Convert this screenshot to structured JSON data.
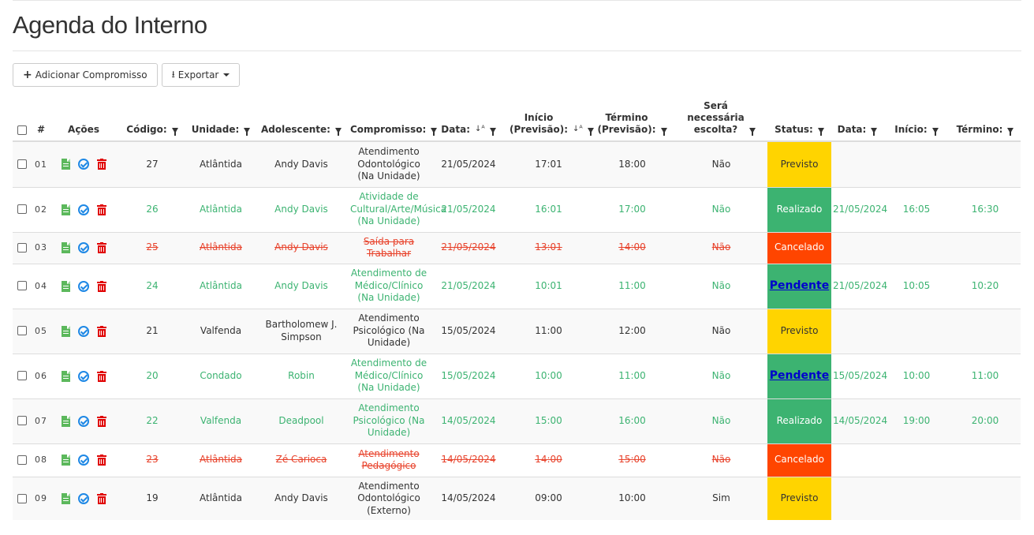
{
  "page": {
    "title": "Agenda do Interno"
  },
  "toolbar": {
    "add_label": "Adicionar Compromisso",
    "add_icon": "plus-icon",
    "export_label": "Exportar",
    "export_icon": "download-icon"
  },
  "table": {
    "headers": {
      "index": "#",
      "actions": "Ações",
      "code": "Código:",
      "unit": "Unidade:",
      "teen": "Adolescente:",
      "appointment": "Compromisso:",
      "date": "Data:",
      "start_l1": "Início",
      "start_l2": "(Previsão):",
      "end_l1": "Término",
      "end_l2": "(Previsão):",
      "escort_l1": "Será",
      "escort_l2": "necessária",
      "escort_l3": "escolta?",
      "status": "Status:",
      "real_date": "Data:",
      "real_start": "Início:",
      "real_end": "Término:"
    },
    "rows": [
      {
        "idx": "01",
        "code": "27",
        "unit": "Atlântida",
        "teen": "Andy Davis",
        "appt": "Atendimento Odontológico (Na Unidade)",
        "date": "21/05/2024",
        "start": "17:01",
        "end": "18:00",
        "escort": "Não",
        "status": "Previsto",
        "rdate": "",
        "rstart": "",
        "rend": ""
      },
      {
        "idx": "02",
        "code": "26",
        "unit": "Atlântida",
        "teen": "Andy Davis",
        "appt": "Atividade de Cultural/Arte/Música (Na Unidade)",
        "date": "21/05/2024",
        "start": "16:01",
        "end": "17:00",
        "escort": "Não",
        "status": "Realizado",
        "rdate": "21/05/2024",
        "rstart": "16:05",
        "rend": "16:30"
      },
      {
        "idx": "03",
        "code": "25",
        "unit": "Atlântida",
        "teen": "Andy Davis",
        "appt": "Saída para Trabalhar",
        "date": "21/05/2024",
        "start": "13:01",
        "end": "14:00",
        "escort": "Não",
        "status": "Cancelado",
        "rdate": "",
        "rstart": "",
        "rend": ""
      },
      {
        "idx": "04",
        "code": "24",
        "unit": "Atlântida",
        "teen": "Andy Davis",
        "appt": "Atendimento de Médico/Clínico (Na Unidade)",
        "date": "21/05/2024",
        "start": "10:01",
        "end": "11:00",
        "escort": "Não",
        "status": "Pendente",
        "rdate": "21/05/2024",
        "rstart": "10:05",
        "rend": "10:20"
      },
      {
        "idx": "05",
        "code": "21",
        "unit": "Valfenda",
        "teen": "Bartholomew J. Simpson",
        "appt": "Atendimento Psicológico (Na Unidade)",
        "date": "15/05/2024",
        "start": "11:00",
        "end": "12:00",
        "escort": "Não",
        "status": "Previsto",
        "rdate": "",
        "rstart": "",
        "rend": ""
      },
      {
        "idx": "06",
        "code": "20",
        "unit": "Condado",
        "teen": "Robin",
        "appt": "Atendimento de Médico/Clínico (Na Unidade)",
        "date": "15/05/2024",
        "start": "10:00",
        "end": "11:00",
        "escort": "Não",
        "status": "Pendente",
        "rdate": "15/05/2024",
        "rstart": "10:00",
        "rend": "11:00"
      },
      {
        "idx": "07",
        "code": "22",
        "unit": "Valfenda",
        "teen": "Deadpool",
        "appt": "Atendimento Psicológico (Na Unidade)",
        "date": "14/05/2024",
        "start": "15:00",
        "end": "16:00",
        "escort": "Não",
        "status": "Realizado",
        "rdate": "14/05/2024",
        "rstart": "19:00",
        "rend": "20:00"
      },
      {
        "idx": "08",
        "code": "23",
        "unit": "Atlântida",
        "teen": "Zé Carioca",
        "appt": "Atendimento Pedagógico",
        "date": "14/05/2024",
        "start": "14:00",
        "end": "15:00",
        "escort": "Não",
        "status": "Cancelado",
        "rdate": "",
        "rstart": "",
        "rend": ""
      },
      {
        "idx": "09",
        "code": "19",
        "unit": "Atlântida",
        "teen": "Andy Davis",
        "appt": "Atendimento Odontológico (Externo)",
        "date": "14/05/2024",
        "start": "09:00",
        "end": "10:00",
        "escort": "Sim",
        "status": "Previsto",
        "rdate": "",
        "rstart": "",
        "rend": ""
      }
    ]
  },
  "colors": {
    "previsto": "#ffd400",
    "realizado": "#3cb371",
    "cancelado": "#ff4500",
    "pendente_link": "#0000cc",
    "trash": "#e00000",
    "check": "#1e88e5",
    "doc": "#5cb85c"
  },
  "icons": [
    "plus-icon",
    "download-icon",
    "document-icon",
    "check-circle-icon",
    "trash-icon",
    "filter-icon",
    "sort-icon"
  ]
}
